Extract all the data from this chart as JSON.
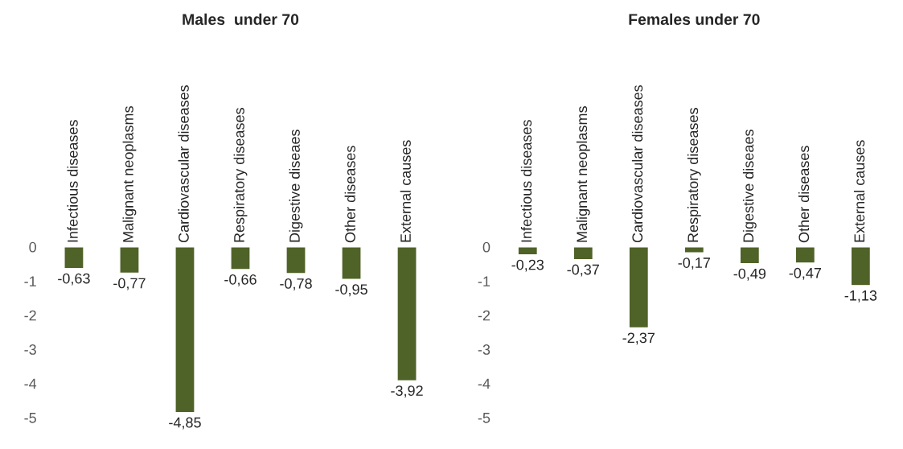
{
  "chart_data": [
    {
      "type": "bar",
      "title": "Males  under 70",
      "categories": [
        "Infectious diseases",
        "Malignant neoplasms",
        "Cardiovascular diseases",
        "Respiratory diseases",
        "Digestive diseaes",
        "Other diseases",
        "External causes"
      ],
      "values": [
        -0.63,
        -0.77,
        -4.85,
        -0.66,
        -0.78,
        -0.95,
        -3.92
      ],
      "value_labels": [
        "-0,63",
        "-0,77",
        "-4,85",
        "-0,66",
        "-0,78",
        "-0,95",
        "-3,92"
      ],
      "color": "#4f6228",
      "ylim": [
        -5,
        0
      ],
      "yticks": [
        0,
        -1,
        -2,
        -3,
        -4,
        -5
      ],
      "grid": false,
      "legend": false
    },
    {
      "type": "bar",
      "title": "Females under 70",
      "categories": [
        "Infectious diseases",
        "Malignant neoplasms",
        "Cardiovascular diseases",
        "Respiratory diseases",
        "Digestive diseaes",
        "Other diseases",
        "External causes"
      ],
      "values": [
        -0.23,
        -0.37,
        -2.37,
        -0.17,
        -0.49,
        -0.47,
        -1.13
      ],
      "value_labels": [
        "-0,23",
        "-0,37",
        "-2,37",
        "-0,17",
        "-0,49",
        "-0,47",
        "-1,13"
      ],
      "color": "#4f6228",
      "ylim": [
        -5,
        0
      ],
      "yticks": [
        0,
        -1,
        -2,
        -3,
        -4,
        -5
      ],
      "grid": false,
      "legend": false
    }
  ]
}
